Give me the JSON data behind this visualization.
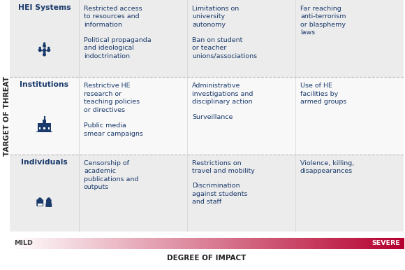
{
  "title_y_axis": "TARGET OF THREAT",
  "title_x_axis": "DEGREE OF IMPACT",
  "mild_label": "MILD",
  "severe_label": "SEVERE",
  "bg_color": "#ffffff",
  "text_color": "#1a3a6b",
  "label_col_bg": "#e8e8e8",
  "row_bg_odd": "#ececec",
  "row_bg_even": "#f8f8f8",
  "divider_color": "#aaaaaa",
  "font_size_row_label": 7.8,
  "font_size_cell": 6.8,
  "font_size_axis_title": 7.5,
  "font_size_mild_severe": 6.8,
  "row_labels": [
    "HEI Systems",
    "Institutions",
    "Individuals"
  ],
  "cells": [
    [
      [
        "Restricted access\nto resources and\ninformation",
        "Political propaganda\nand ideological\nindoctrination"
      ],
      [
        "Limitations on\nuniversity\nautonomy",
        "Ban on student\nor teacher\nunions/associations"
      ],
      [
        "Far reaching\nanti-terrorism\nor blasphemy\nlaws",
        ""
      ]
    ],
    [
      [
        "Restrictive HE\nresearch or\nteaching policies\nor directives",
        "Public media\nsmear campaigns"
      ],
      [
        "Administrative\ninvestigations and\ndisciplinary action",
        "Surveillance"
      ],
      [
        "Use of HE\nfacilities by\narmed groups",
        ""
      ]
    ],
    [
      [
        "Censorship of\nacademic\npublications and\noutputs",
        ""
      ],
      [
        "Restrictions on\ntravel and mobility",
        "Discrimination\nagainst students\nand staff"
      ],
      [
        "Violence, killing,\ndisappearances",
        ""
      ]
    ]
  ],
  "gradient_start": "#ffffff",
  "gradient_end": "#b5002e"
}
